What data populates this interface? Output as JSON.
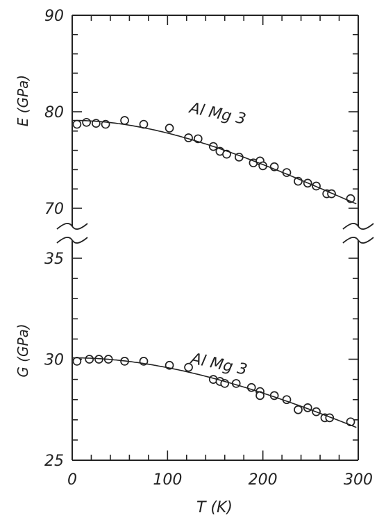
{
  "chart_data": [
    {
      "type": "scatter",
      "panel": "upper",
      "ylabel": "E (GPa)",
      "ylim": [
        70,
        90
      ],
      "yticks": [
        70,
        80,
        90
      ],
      "xlim": [
        0,
        300
      ],
      "annotation": "Al Mg 3",
      "fit_curve": true,
      "series": [
        {
          "x": [
            5,
            15,
            25,
            35,
            55,
            75,
            102,
            122,
            132,
            148,
            155,
            162,
            175,
            190,
            197,
            200,
            212,
            225,
            237,
            247,
            256,
            267,
            272,
            292
          ],
          "y": [
            78.7,
            78.9,
            78.8,
            78.7,
            79.1,
            78.7,
            78.3,
            77.3,
            77.2,
            76.4,
            75.9,
            75.6,
            75.3,
            74.7,
            74.9,
            74.4,
            74.3,
            73.7,
            72.8,
            72.6,
            72.3,
            71.5,
            71.5,
            71.0
          ]
        }
      ]
    },
    {
      "type": "scatter",
      "panel": "lower",
      "ylabel": "G (GPa)",
      "ylim": [
        25,
        35
      ],
      "yticks": [
        25,
        30,
        35
      ],
      "xlim": [
        0,
        300
      ],
      "xticks": [
        0,
        100,
        200,
        300
      ],
      "xlabel": "T (K)",
      "annotation": "Al Mg 3",
      "fit_curve": true,
      "series": [
        {
          "x": [
            5,
            18,
            28,
            38,
            55,
            75,
            102,
            122,
            148,
            155,
            160,
            172,
            188,
            197,
            197,
            212,
            225,
            237,
            247,
            256,
            265,
            270,
            292
          ],
          "y": [
            29.9,
            30.0,
            30.0,
            30.0,
            29.9,
            29.9,
            29.7,
            29.6,
            29.0,
            28.9,
            28.8,
            28.8,
            28.6,
            28.4,
            28.2,
            28.2,
            28.0,
            27.5,
            27.6,
            27.4,
            27.1,
            27.1,
            26.9
          ]
        }
      ]
    }
  ],
  "axis_gap_marker": "~"
}
